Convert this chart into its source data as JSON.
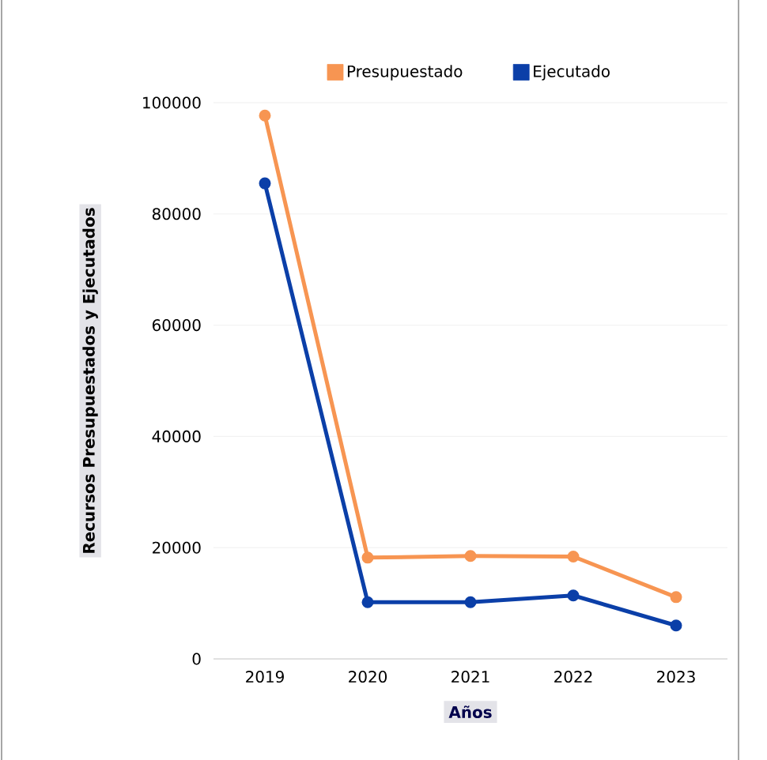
{
  "chart_data": {
    "type": "line",
    "xlabel": "Años",
    "ylabel": "Recursos Presupuestados y Ejecutados",
    "categories": [
      "2019",
      "2020",
      "2021",
      "2022",
      "2023"
    ],
    "series": [
      {
        "name": "Presupuestado",
        "color": "#f79552",
        "values": [
          97700,
          18200,
          18500,
          18400,
          11100
        ]
      },
      {
        "name": "Ejecutado",
        "color": "#0b3fa8",
        "values": [
          85500,
          10200,
          10200,
          11400,
          6000
        ]
      }
    ],
    "ylim": [
      0,
      100000
    ],
    "yticks": [
      0,
      20000,
      40000,
      60000,
      80000,
      100000
    ],
    "grid": "y",
    "legend": "top",
    "marker": "circle",
    "line_style": "solid"
  }
}
